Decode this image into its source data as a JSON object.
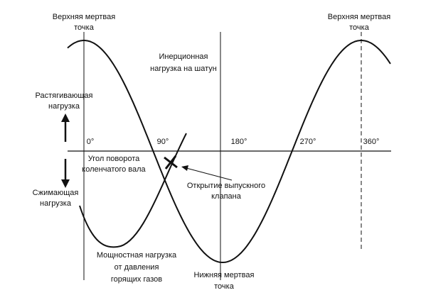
{
  "labels": {
    "tdc_left": [
      "Верхняя мертвая",
      "точка"
    ],
    "tdc_right": [
      "Верхняя мертвая",
      "точка"
    ],
    "inertia": [
      "Инерционная",
      "нагрузка на шатун"
    ],
    "tension": [
      "Растягивающая",
      "нагрузка"
    ],
    "compression": [
      "Сжимающая",
      "нагрузка"
    ],
    "crank_angle": [
      "Угол поворота",
      "коленчатого вала"
    ],
    "exhaust": [
      "Открытие выпускного",
      "клапана"
    ],
    "gas": [
      "Мощностная нагрузка",
      "от давления",
      "горящих газов"
    ],
    "bdc": [
      "Нижняя мертвая",
      "точка"
    ],
    "angles": [
      "0°",
      "90°",
      "180°",
      "270°",
      "360°"
    ]
  }
}
